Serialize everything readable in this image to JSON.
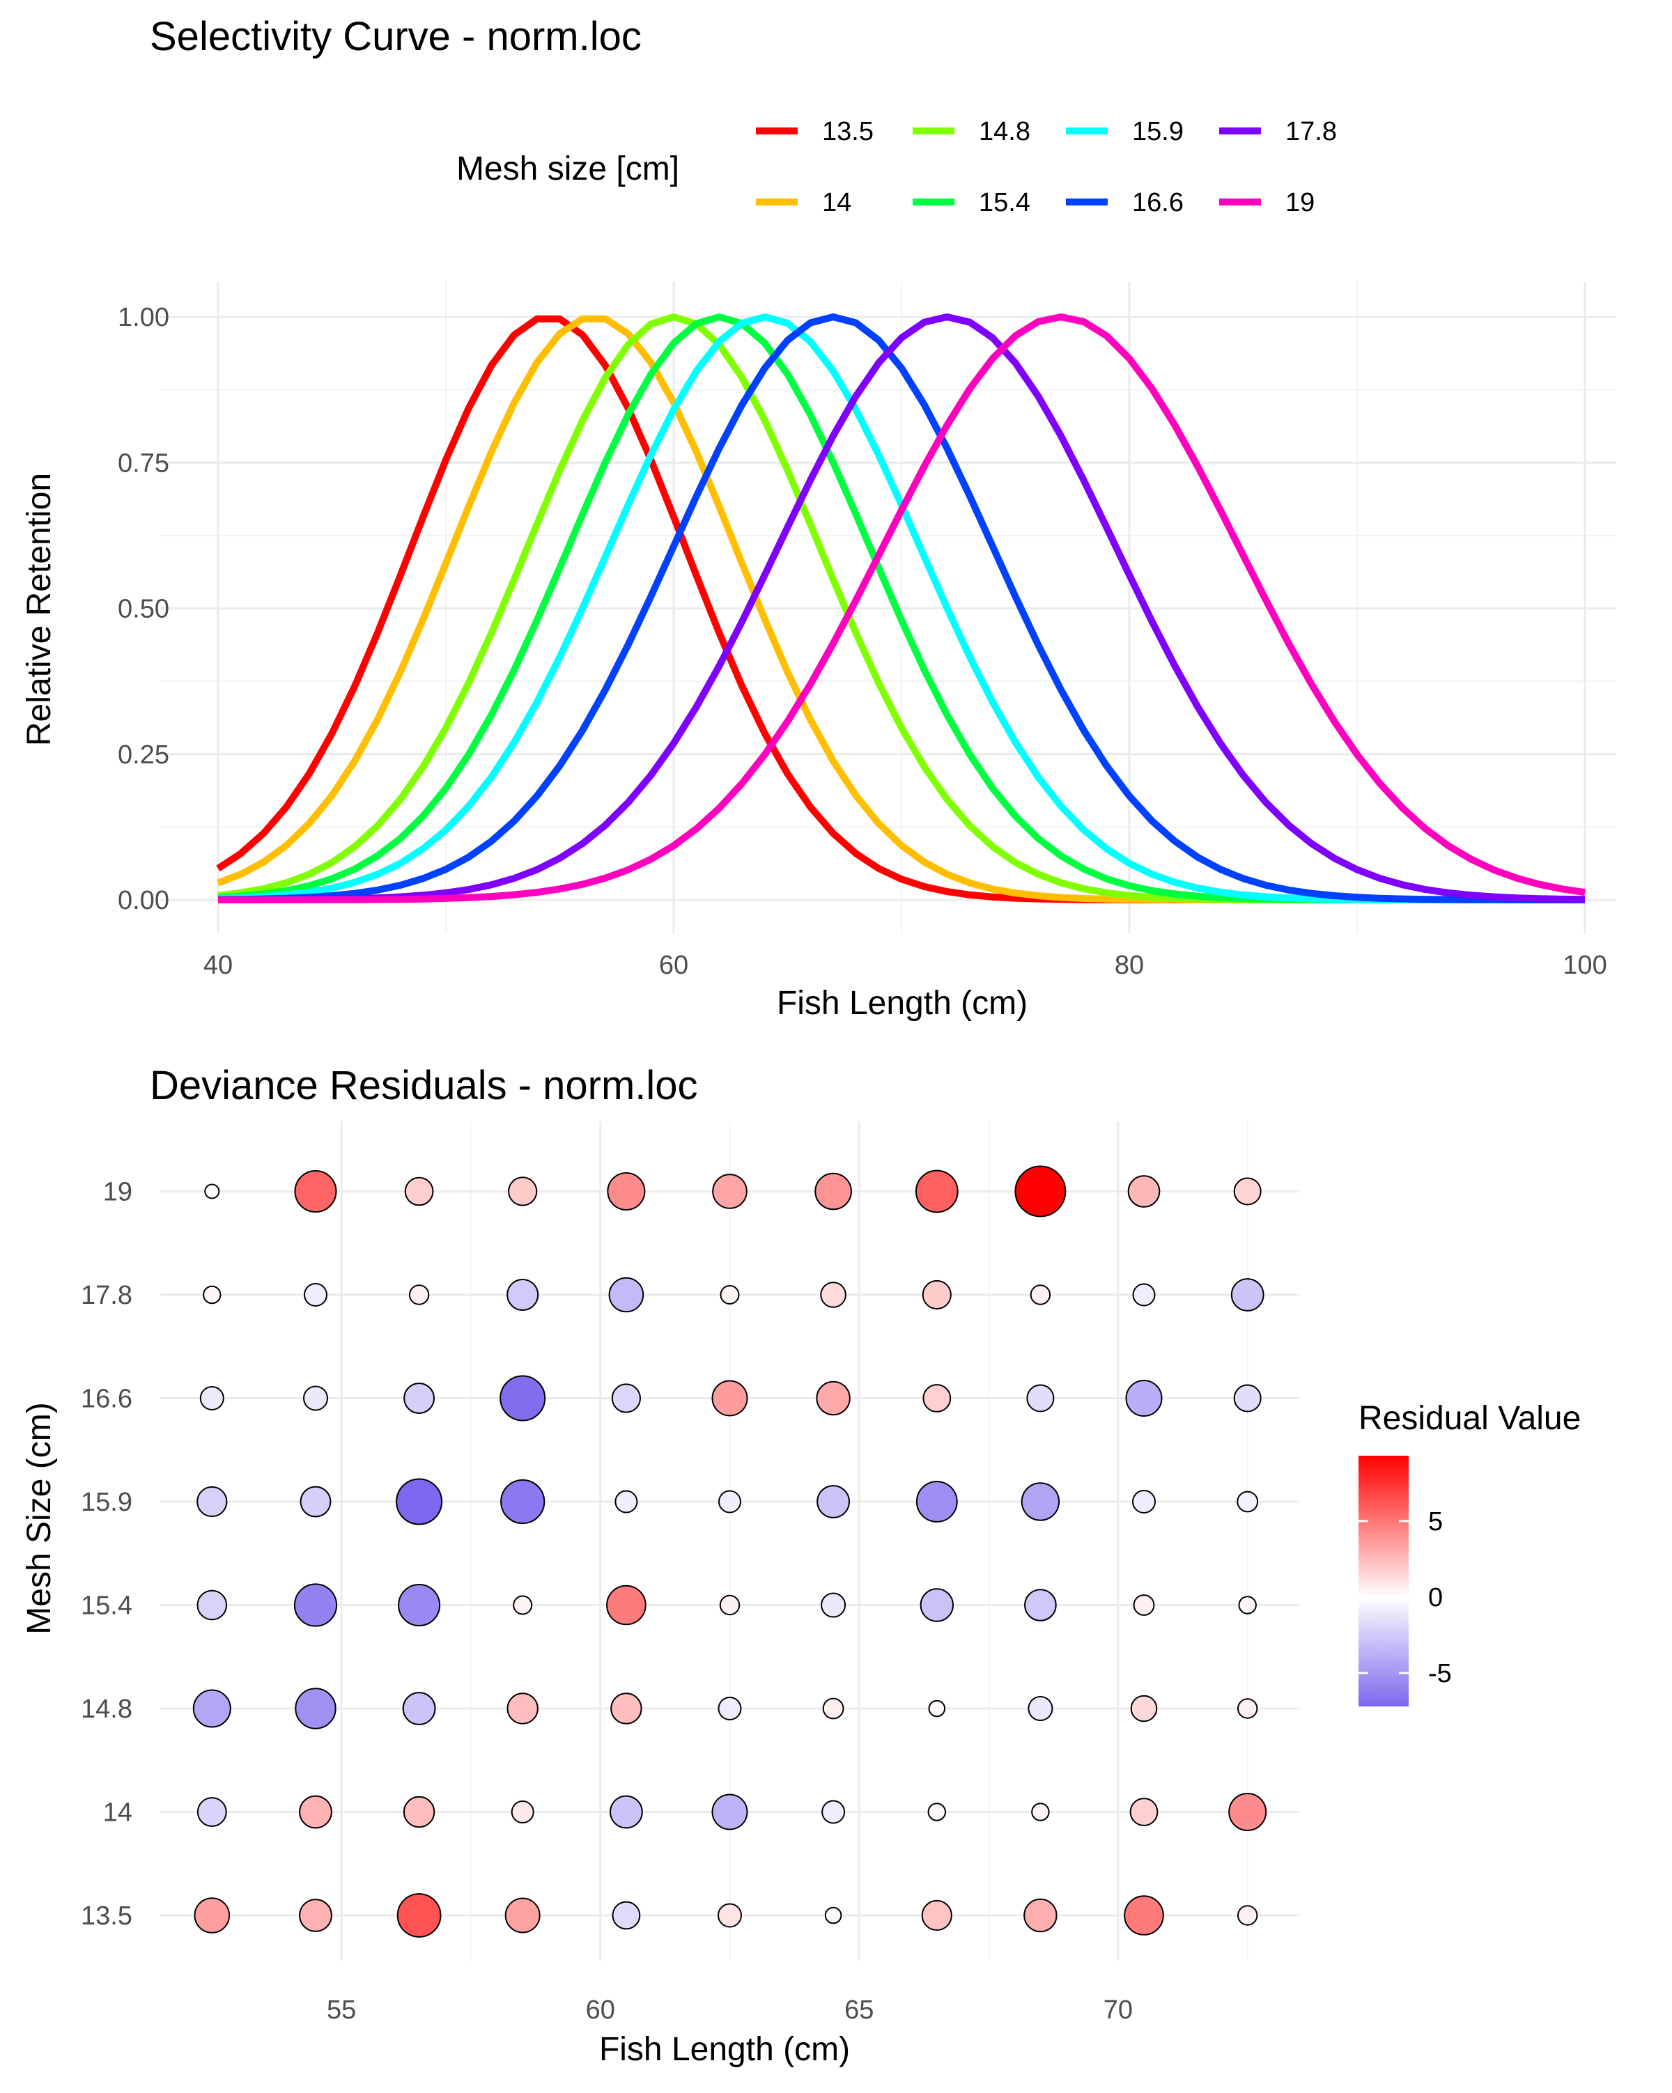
{
  "chart_data": [
    {
      "type": "line",
      "title": "Selectivity Curve - norm.loc",
      "xlabel": "Fish Length (cm)",
      "ylabel": "Relative Retention",
      "xlim": [
        40,
        100
      ],
      "ylim": [
        0,
        1
      ],
      "x_ticks": [
        "40",
        "60",
        "80",
        "100"
      ],
      "y_ticks": [
        "0.00",
        "0.25",
        "0.50",
        "0.75",
        "1.00"
      ],
      "legend_title": "Mesh size [cm]",
      "legend_position": "top",
      "curve_model": "normal, location proportional to mesh size",
      "length_step": 1,
      "series": [
        {
          "name": "13.5",
          "color": "#ff0000",
          "peak": 54.5,
          "sd": 6.0
        },
        {
          "name": "14",
          "color": "#ffbf00",
          "peak": 56.5,
          "sd": 6.2
        },
        {
          "name": "14.8",
          "color": "#80ff00",
          "peak": 60.0,
          "sd": 6.4
        },
        {
          "name": "15.4",
          "color": "#00ff40",
          "peak": 62.0,
          "sd": 6.6
        },
        {
          "name": "15.9",
          "color": "#00ffff",
          "peak": 64.0,
          "sd": 6.8
        },
        {
          "name": "16.6",
          "color": "#0040ff",
          "peak": 67.0,
          "sd": 7.0
        },
        {
          "name": "17.8",
          "color": "#7f00ff",
          "peak": 72.0,
          "sd": 7.4
        },
        {
          "name": "19",
          "color": "#ff00bf",
          "peak": 77.0,
          "sd": 7.8
        }
      ]
    },
    {
      "type": "scatter",
      "title": "Deviance Residuals - norm.loc",
      "xlabel": "Fish Length (cm)",
      "ylabel": "Mesh Size (cm)",
      "xlim": [
        51.5,
        73.5
      ],
      "x_ticks": [
        "55",
        "60",
        "65",
        "70"
      ],
      "x": [
        52.5,
        54.5,
        56.5,
        58.5,
        60.5,
        62.5,
        64.5,
        66.5,
        68.5,
        70.5,
        72.5
      ],
      "mesh_sizes": [
        "13.5",
        "14",
        "14.8",
        "15.4",
        "15.9",
        "16.6",
        "17.8",
        "19"
      ],
      "residuals": [
        [
          3.5,
          2.8,
          6.3,
          3.4,
          -1.7,
          1.0,
          0.2,
          2.2,
          2.9,
          4.8,
          0.5
        ],
        [
          -2.0,
          2.8,
          2.4,
          0.8,
          -2.8,
          -3.6,
          -0.9,
          0.3,
          0.3,
          1.7,
          4.2
        ],
        [
          -4.2,
          -5.2,
          -2.8,
          2.4,
          2.4,
          -0.9,
          0.6,
          0.2,
          -1.1,
          1.4,
          0.5
        ],
        [
          -2.1,
          -5.9,
          -5.6,
          0.4,
          4.8,
          0.5,
          -1.1,
          -2.9,
          -2.6,
          0.6,
          0.3
        ],
        [
          -2.2,
          -2.3,
          -7.2,
          -6.4,
          -0.8,
          -0.8,
          -2.8,
          -5.3,
          -4.3,
          -0.9,
          -0.6
        ],
        [
          -1.0,
          -1.1,
          -2.3,
          -6.9,
          -1.9,
          3.6,
          3.1,
          1.7,
          -1.6,
          -3.8,
          -1.6
        ],
        [
          0.3,
          -0.9,
          0.5,
          -2.5,
          -3.3,
          0.4,
          1.3,
          1.9,
          0.5,
          -0.8,
          -2.8
        ],
        [
          0.1,
          5.6,
          1.8,
          1.9,
          4.2,
          3.3,
          3.9,
          5.8,
          9.3,
          2.6,
          1.6
        ]
      ],
      "legend_title": "Residual Value",
      "color_ticks": [
        "5",
        "0",
        "-5"
      ],
      "color_range": [
        -7.2,
        9.3
      ],
      "color_scale": {
        "low": "#7b68ee",
        "mid": "#ffffff",
        "high": "#ff0000"
      },
      "legend_position": "right"
    }
  ]
}
